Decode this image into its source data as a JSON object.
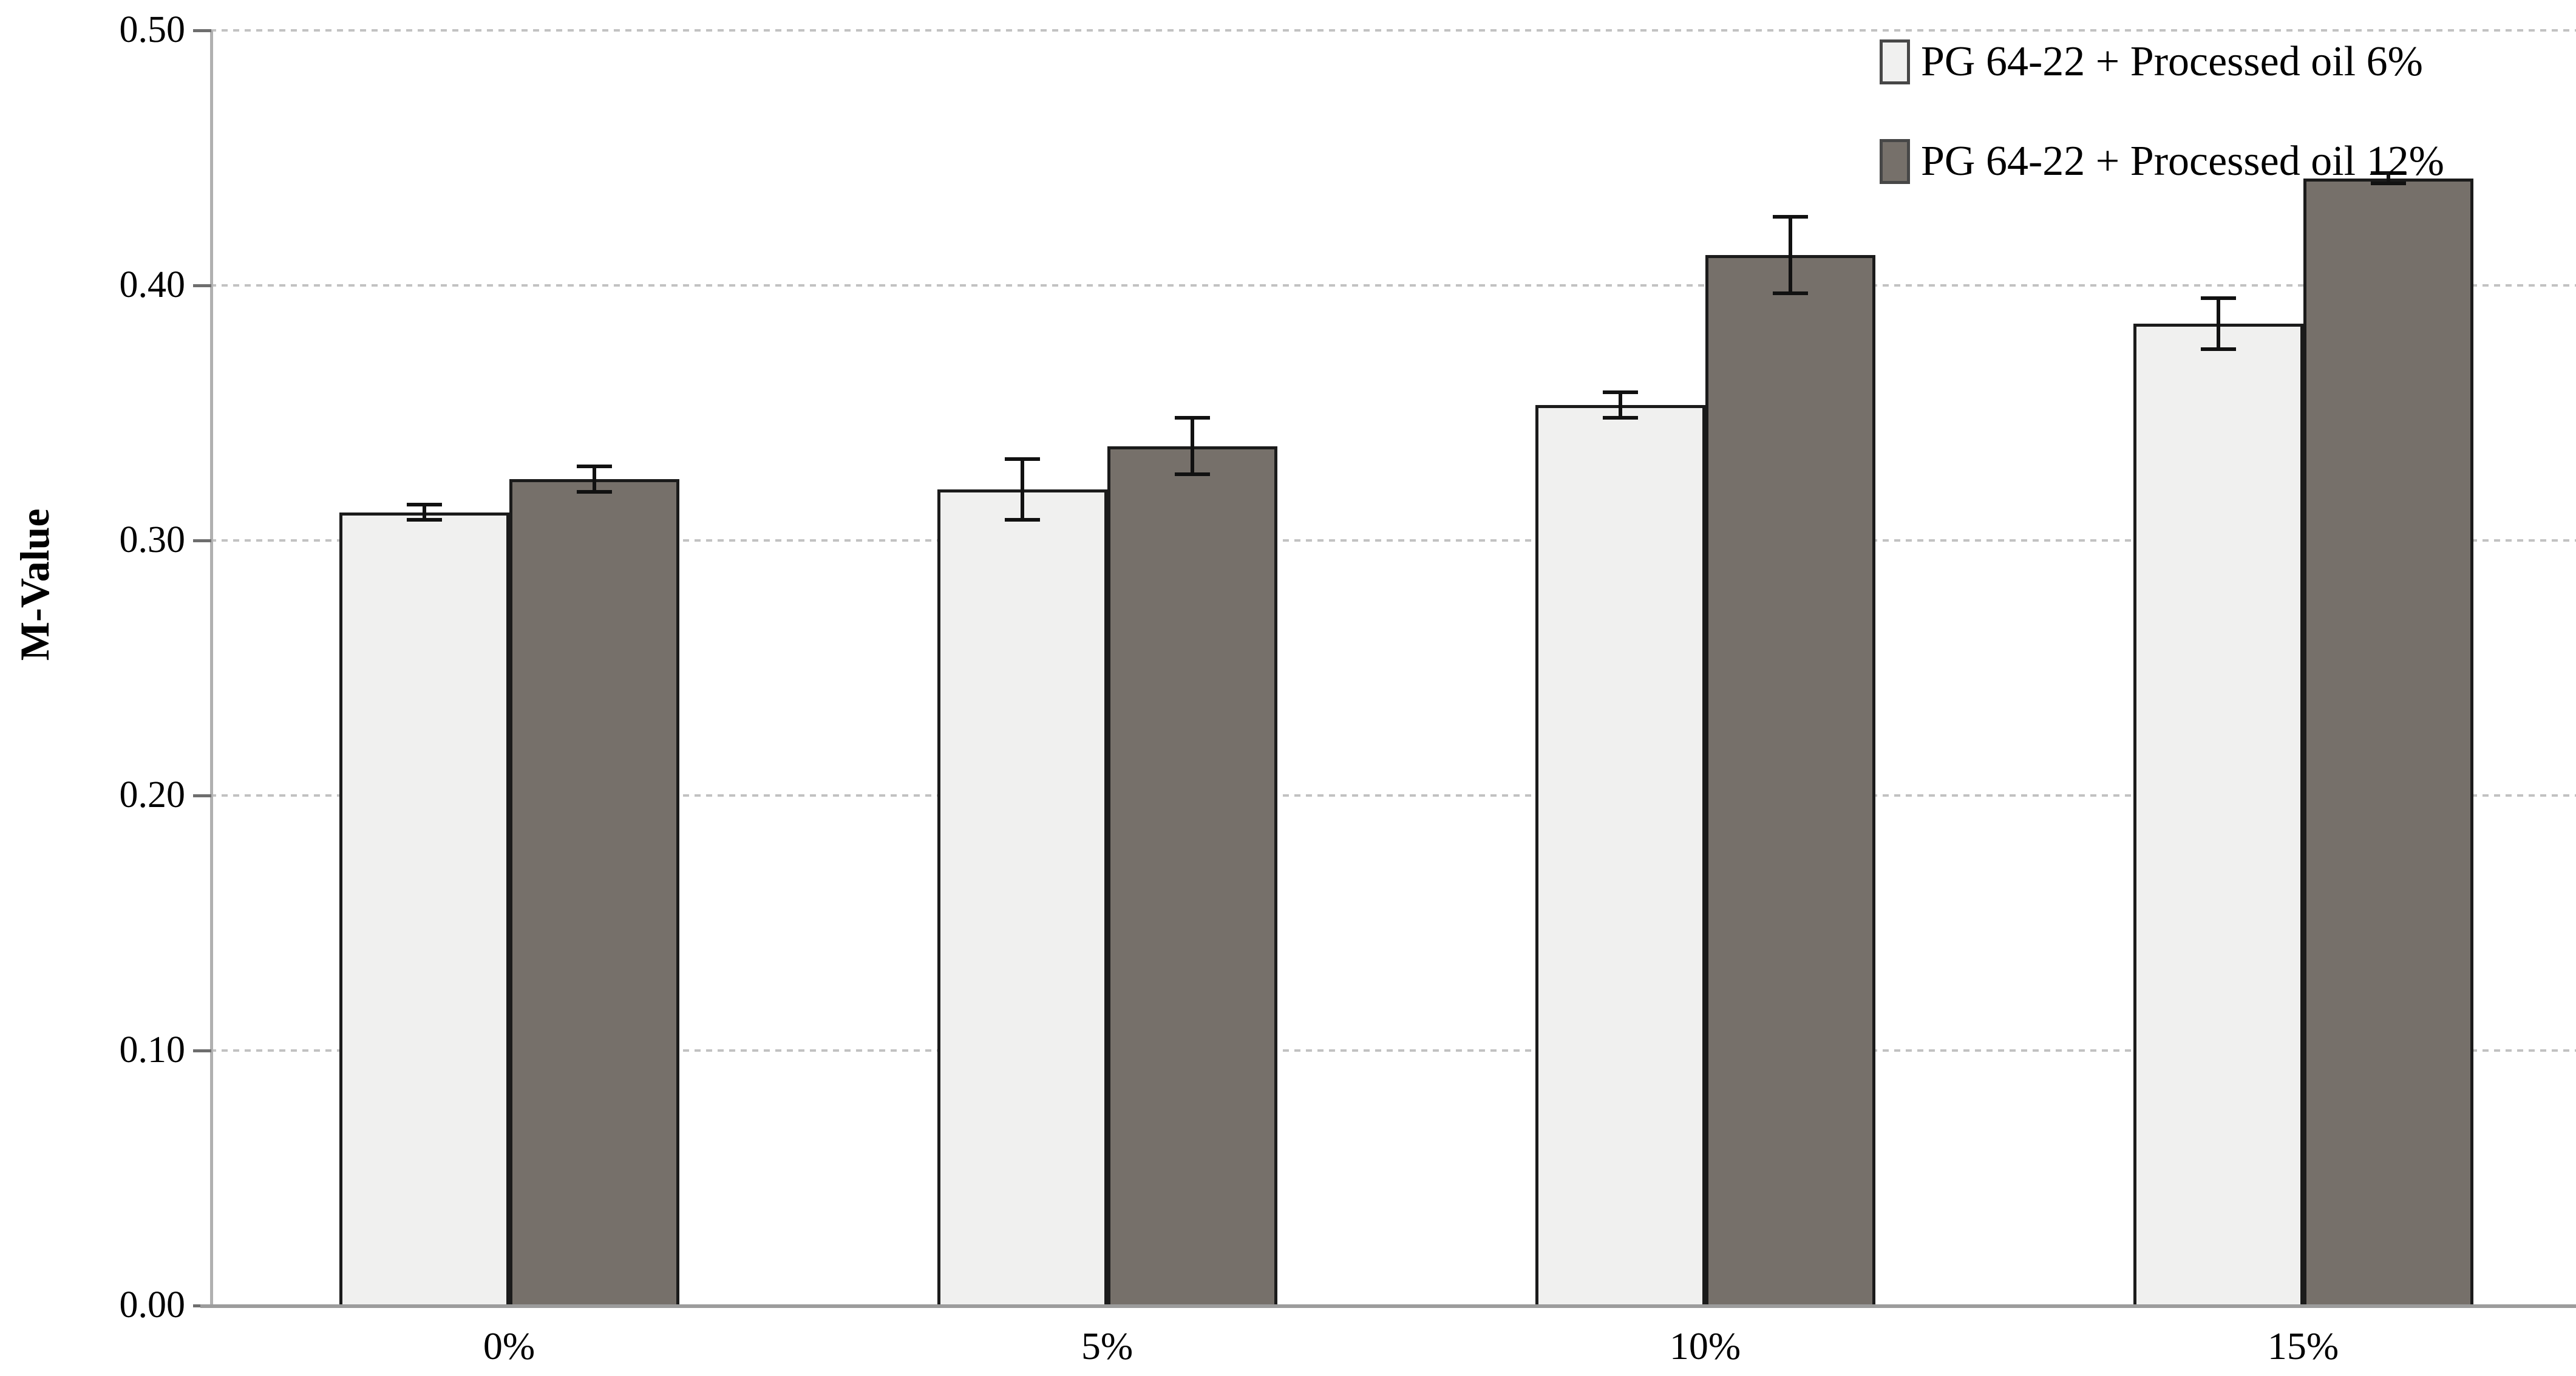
{
  "chart_data": {
    "type": "bar",
    "title": "",
    "categories": [
      "0%",
      "5%",
      "10%",
      "15%"
    ],
    "series": [
      {
        "name": "PG 64-22 + Processed oil 6%",
        "fill_color": "#f0f0ef",
        "border_color": "#1b1b1b",
        "values": [
          0.311,
          0.32,
          0.353,
          0.385
        ],
        "errors": [
          0.003,
          0.012,
          0.005,
          0.01
        ]
      },
      {
        "name": "PG 64-22 + Processed oil 12%",
        "fill_color": "#76706a",
        "border_color": "#1b1b1b",
        "values": [
          0.324,
          0.337,
          0.412,
          0.442
        ],
        "errors": [
          0.005,
          0.011,
          0.015,
          0.002
        ]
      }
    ],
    "xlabel": "",
    "ylabel": "M-Value",
    "ylim": [
      0.0,
      0.5
    ],
    "ytick_step": 0.1,
    "ytick_labels": [
      "0.00",
      "0.10",
      "0.20",
      "0.30",
      "0.40",
      "0.50"
    ],
    "error_bars": true,
    "grid": "horizontal-dashed",
    "legend_position": "top-right",
    "colors": {
      "gridline": "#c2c2c2",
      "axis_line": "#b0b0b0",
      "baseline": "#9c9c9c",
      "tick": "#6e6e6e",
      "text": "#000000",
      "background": "#ffffff"
    }
  }
}
